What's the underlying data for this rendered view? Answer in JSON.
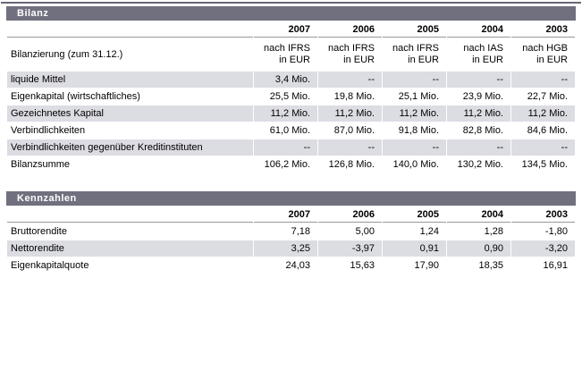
{
  "colors": {
    "header_bar_bg": "#70707e",
    "shaded_row_bg": "#dcdce3",
    "years_rule": "#96969e",
    "top_rule": "#686875"
  },
  "sections": [
    {
      "title": "Bilanz",
      "years": [
        "2007",
        "2006",
        "2005",
        "2004",
        "2003"
      ],
      "accounting_row": {
        "label": "Bilanzierung (zum 31.12.)",
        "values": [
          {
            "line1": "nach IFRS",
            "line2": "in EUR"
          },
          {
            "line1": "nach IFRS",
            "line2": "in EUR"
          },
          {
            "line1": "nach IFRS",
            "line2": "in EUR"
          },
          {
            "line1": "nach IAS",
            "line2": "in EUR"
          },
          {
            "line1": "nach HGB",
            "line2": "in EUR"
          }
        ]
      },
      "rows": [
        {
          "label": "liquide Mittel",
          "values": [
            "3,4 Mio.",
            "--",
            "--",
            "--",
            "--"
          ]
        },
        {
          "label": "Eigenkapital (wirtschaftliches)",
          "values": [
            "25,5 Mio.",
            "19,8 Mio.",
            "25,1 Mio.",
            "23,9 Mio.",
            "22,7 Mio."
          ]
        },
        {
          "label": "Gezeichnetes Kapital",
          "values": [
            "11,2 Mio.",
            "11,2 Mio.",
            "11,2 Mio.",
            "11,2 Mio.",
            "11,2 Mio."
          ]
        },
        {
          "label": "Verbindlichkeiten",
          "values": [
            "61,0 Mio.",
            "87,0 Mio.",
            "91,8 Mio.",
            "82,8 Mio.",
            "84,6 Mio."
          ]
        },
        {
          "label": "Verbindlichkeiten gegenüber Kreditinstituten",
          "values": [
            "--",
            "--",
            "--",
            "--",
            "--"
          ]
        },
        {
          "label": "Bilanzsumme",
          "values": [
            "106,2 Mio.",
            "126,8 Mio.",
            "140,0 Mio.",
            "130,2 Mio.",
            "134,5 Mio."
          ]
        }
      ]
    },
    {
      "title": "Kennzahlen",
      "years": [
        "2007",
        "2006",
        "2005",
        "2004",
        "2003"
      ],
      "rows": [
        {
          "label": "Bruttorendite",
          "values": [
            "7,18",
            "5,00",
            "1,24",
            "1,28",
            "-1,80"
          ]
        },
        {
          "label": "Nettorendite",
          "values": [
            "3,25",
            "-3,97",
            "0,91",
            "0,90",
            "-3,20"
          ]
        },
        {
          "label": "Eigenkapitalquote",
          "values": [
            "24,03",
            "15,63",
            "17,90",
            "18,35",
            "16,91"
          ]
        }
      ]
    }
  ]
}
